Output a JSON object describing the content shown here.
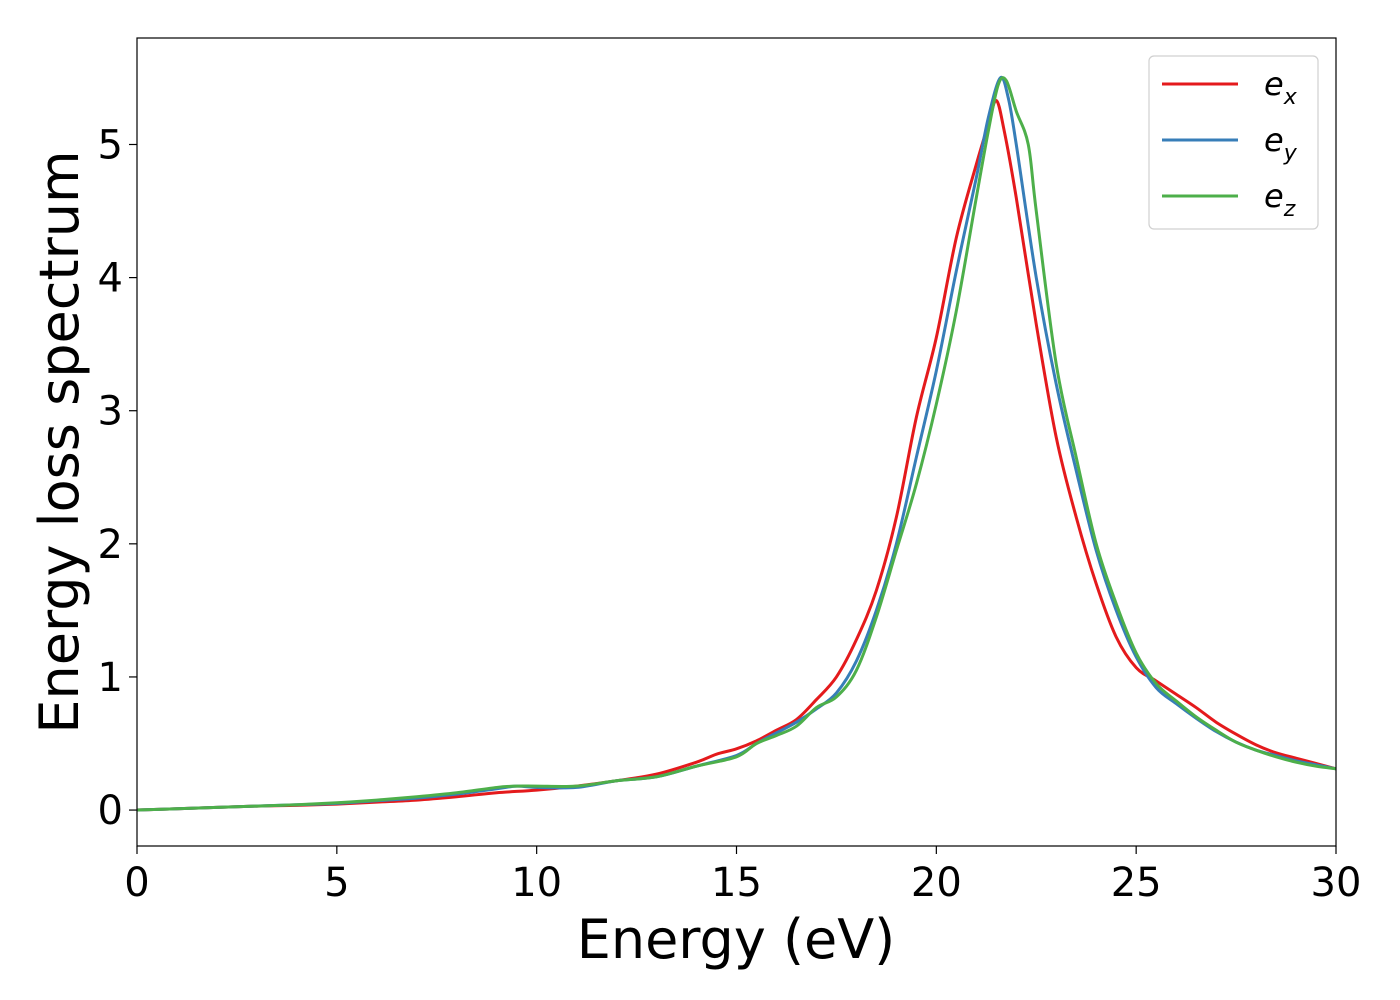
{
  "chart_data": {
    "type": "line",
    "title": "",
    "xlabel": "Energy (eV)",
    "ylabel": "Energy loss spectrum",
    "xlim": [
      0,
      30
    ],
    "ylim": [
      -0.27,
      5.8
    ],
    "xticks": [
      "0",
      "5",
      "10",
      "15",
      "20",
      "25",
      "30"
    ],
    "yticks": [
      "0",
      "1",
      "2",
      "3",
      "4",
      "5"
    ],
    "grid": false,
    "legend": {
      "placement": "top-right"
    },
    "series": [
      {
        "name": "e_x",
        "label_base": "e",
        "label_sub": "x",
        "color": "#e41a1c",
        "points": [
          [
            0,
            0.0
          ],
          [
            1,
            0.01
          ],
          [
            2,
            0.02
          ],
          [
            3,
            0.03
          ],
          [
            4,
            0.035
          ],
          [
            5,
            0.045
          ],
          [
            6,
            0.06
          ],
          [
            7,
            0.075
          ],
          [
            8,
            0.1
          ],
          [
            9,
            0.13
          ],
          [
            10,
            0.15
          ],
          [
            11,
            0.18
          ],
          [
            12,
            0.22
          ],
          [
            13,
            0.27
          ],
          [
            14,
            0.36
          ],
          [
            14.5,
            0.42
          ],
          [
            15,
            0.46
          ],
          [
            15.5,
            0.52
          ],
          [
            16,
            0.6
          ],
          [
            16.5,
            0.68
          ],
          [
            17,
            0.83
          ],
          [
            17.5,
            1.0
          ],
          [
            18,
            1.28
          ],
          [
            18.5,
            1.65
          ],
          [
            19,
            2.2
          ],
          [
            19.5,
            2.95
          ],
          [
            20,
            3.55
          ],
          [
            20.5,
            4.3
          ],
          [
            21,
            4.85
          ],
          [
            21.3,
            5.15
          ],
          [
            21.5,
            5.33
          ],
          [
            21.7,
            5.1
          ],
          [
            22,
            4.6
          ],
          [
            22.5,
            3.65
          ],
          [
            23,
            2.8
          ],
          [
            23.5,
            2.2
          ],
          [
            24,
            1.7
          ],
          [
            24.5,
            1.3
          ],
          [
            25,
            1.07
          ],
          [
            25.5,
            0.97
          ],
          [
            26,
            0.87
          ],
          [
            26.5,
            0.77
          ],
          [
            27,
            0.66
          ],
          [
            27.5,
            0.57
          ],
          [
            28,
            0.49
          ],
          [
            28.5,
            0.43
          ],
          [
            29,
            0.39
          ],
          [
            29.5,
            0.35
          ],
          [
            30,
            0.31
          ]
        ]
      },
      {
        "name": "e_y",
        "label_base": "e",
        "label_sub": "y",
        "color": "#377eb8",
        "points": [
          [
            0,
            0.0
          ],
          [
            1,
            0.01
          ],
          [
            2,
            0.02
          ],
          [
            3,
            0.03
          ],
          [
            4,
            0.04
          ],
          [
            5,
            0.05
          ],
          [
            6,
            0.07
          ],
          [
            7,
            0.09
          ],
          [
            8,
            0.12
          ],
          [
            9,
            0.16
          ],
          [
            9.5,
            0.18
          ],
          [
            10,
            0.17
          ],
          [
            11,
            0.17
          ],
          [
            12,
            0.22
          ],
          [
            13,
            0.25
          ],
          [
            14,
            0.33
          ],
          [
            15,
            0.41
          ],
          [
            15.5,
            0.5
          ],
          [
            16,
            0.58
          ],
          [
            16.5,
            0.66
          ],
          [
            17,
            0.76
          ],
          [
            17.5,
            0.88
          ],
          [
            18,
            1.12
          ],
          [
            18.5,
            1.5
          ],
          [
            19,
            2.0
          ],
          [
            19.5,
            2.65
          ],
          [
            20,
            3.3
          ],
          [
            20.5,
            4.05
          ],
          [
            21,
            4.75
          ],
          [
            21.3,
            5.2
          ],
          [
            21.6,
            5.5
          ],
          [
            21.8,
            5.35
          ],
          [
            22,
            5.0
          ],
          [
            22.5,
            4.0
          ],
          [
            23,
            3.2
          ],
          [
            23.5,
            2.55
          ],
          [
            24,
            1.95
          ],
          [
            24.5,
            1.5
          ],
          [
            25,
            1.15
          ],
          [
            25.5,
            0.92
          ],
          [
            26,
            0.8
          ],
          [
            26.5,
            0.69
          ],
          [
            27,
            0.59
          ],
          [
            27.5,
            0.51
          ],
          [
            28,
            0.45
          ],
          [
            28.5,
            0.41
          ],
          [
            29,
            0.37
          ],
          [
            29.5,
            0.34
          ],
          [
            30,
            0.31
          ]
        ]
      },
      {
        "name": "e_z",
        "label_base": "e",
        "label_sub": "z",
        "color": "#4daf4a",
        "points": [
          [
            0,
            0.0
          ],
          [
            1,
            0.01
          ],
          [
            2,
            0.02
          ],
          [
            3,
            0.03
          ],
          [
            4,
            0.04
          ],
          [
            5,
            0.055
          ],
          [
            6,
            0.075
          ],
          [
            7,
            0.1
          ],
          [
            8,
            0.13
          ],
          [
            9,
            0.17
          ],
          [
            9.5,
            0.18
          ],
          [
            10,
            0.18
          ],
          [
            11,
            0.18
          ],
          [
            12,
            0.22
          ],
          [
            13,
            0.25
          ],
          [
            14,
            0.33
          ],
          [
            15,
            0.4
          ],
          [
            15.5,
            0.5
          ],
          [
            16,
            0.56
          ],
          [
            16.5,
            0.63
          ],
          [
            17,
            0.77
          ],
          [
            17.5,
            0.85
          ],
          [
            18,
            1.05
          ],
          [
            18.5,
            1.45
          ],
          [
            19,
            1.95
          ],
          [
            19.5,
            2.45
          ],
          [
            20,
            3.05
          ],
          [
            20.5,
            3.75
          ],
          [
            21,
            4.6
          ],
          [
            21.3,
            5.1
          ],
          [
            21.55,
            5.45
          ],
          [
            21.75,
            5.48
          ],
          [
            22,
            5.25
          ],
          [
            22.3,
            5.0
          ],
          [
            22.5,
            4.5
          ],
          [
            23,
            3.35
          ],
          [
            23.5,
            2.65
          ],
          [
            24,
            2.0
          ],
          [
            24.5,
            1.55
          ],
          [
            25,
            1.18
          ],
          [
            25.5,
            0.95
          ],
          [
            26,
            0.82
          ],
          [
            26.5,
            0.7
          ],
          [
            27,
            0.6
          ],
          [
            27.5,
            0.51
          ],
          [
            28,
            0.45
          ],
          [
            28.5,
            0.4
          ],
          [
            29,
            0.36
          ],
          [
            29.5,
            0.33
          ],
          [
            30,
            0.31
          ]
        ]
      }
    ]
  }
}
